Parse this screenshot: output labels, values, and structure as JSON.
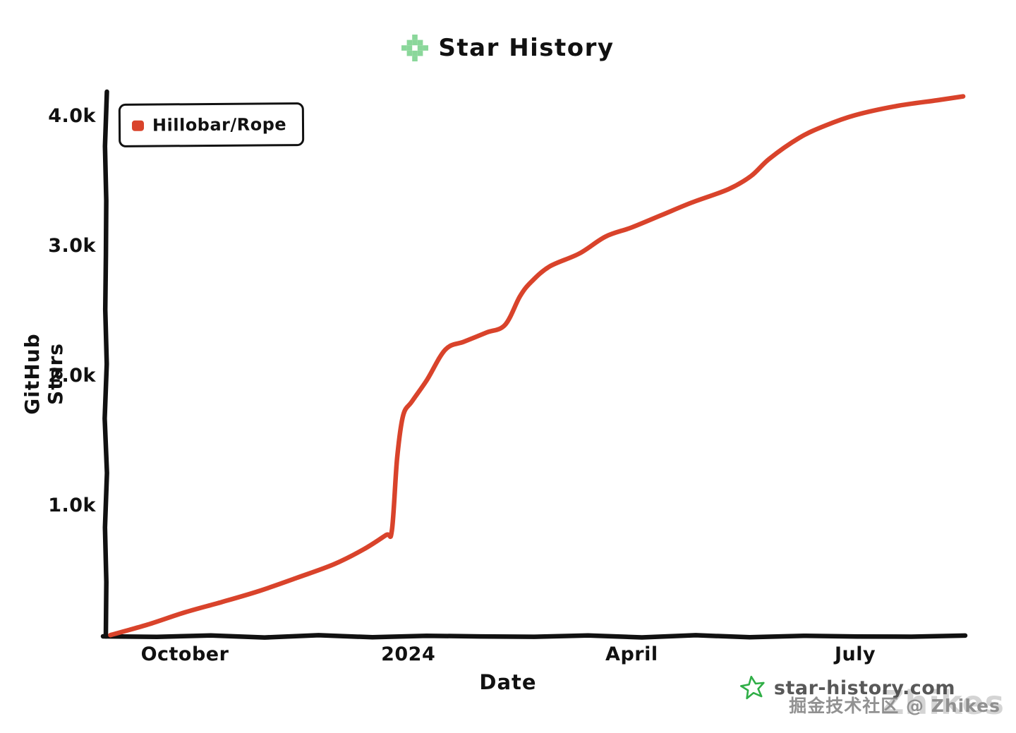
{
  "header": {
    "title": "Star History",
    "logo_icon": "pixel-star-icon",
    "logo_color": "#8ad79a"
  },
  "legend": {
    "items": [
      {
        "label": "Hillobar/Rope",
        "color": "#d9432b"
      }
    ]
  },
  "chart_data": {
    "type": "line",
    "title": "Star History",
    "xlabel": "Date",
    "ylabel": "GitHub Stars",
    "x_axis_unit": "months since 2023-09",
    "x_ticks": [
      {
        "label": "October",
        "m": 1
      },
      {
        "label": "2024",
        "m": 4
      },
      {
        "label": "April",
        "m": 7
      },
      {
        "label": "July",
        "m": 10
      }
    ],
    "y_ticks": [
      {
        "label": "1.0k",
        "value": 1000
      },
      {
        "label": "2.0k",
        "value": 2000
      },
      {
        "label": "3.0k",
        "value": 3000
      },
      {
        "label": "4.0k",
        "value": 4000
      }
    ],
    "ylim": [
      0,
      4200
    ],
    "xlim_months": [
      0,
      11.45
    ],
    "grid": false,
    "legend_position": "top-left",
    "series": [
      {
        "name": "Hillobar/Rope",
        "color": "#d9432b",
        "points": [
          [
            0.0,
            10
          ],
          [
            0.5,
            90
          ],
          [
            1.0,
            185
          ],
          [
            1.5,
            265
          ],
          [
            2.0,
            350
          ],
          [
            2.5,
            450
          ],
          [
            3.0,
            555
          ],
          [
            3.4,
            670
          ],
          [
            3.7,
            780
          ],
          [
            3.78,
            815
          ],
          [
            3.85,
            1370
          ],
          [
            3.93,
            1700
          ],
          [
            4.05,
            1810
          ],
          [
            4.25,
            1975
          ],
          [
            4.5,
            2210
          ],
          [
            4.75,
            2270
          ],
          [
            5.05,
            2340
          ],
          [
            5.3,
            2400
          ],
          [
            5.5,
            2620
          ],
          [
            5.65,
            2730
          ],
          [
            5.9,
            2850
          ],
          [
            6.3,
            2950
          ],
          [
            6.65,
            3080
          ],
          [
            7.0,
            3150
          ],
          [
            7.4,
            3245
          ],
          [
            7.8,
            3340
          ],
          [
            8.3,
            3445
          ],
          [
            8.6,
            3545
          ],
          [
            8.85,
            3680
          ],
          [
            9.25,
            3840
          ],
          [
            9.6,
            3935
          ],
          [
            10.0,
            4015
          ],
          [
            10.55,
            4085
          ],
          [
            11.1,
            4130
          ],
          [
            11.45,
            4160
          ]
        ]
      }
    ]
  },
  "footer": {
    "brand": "star-history.com",
    "brand_icon": "green-star-icon",
    "watermark": "掘金技术社区 @ Zhikes",
    "watermark_echo": "Zhikes"
  }
}
